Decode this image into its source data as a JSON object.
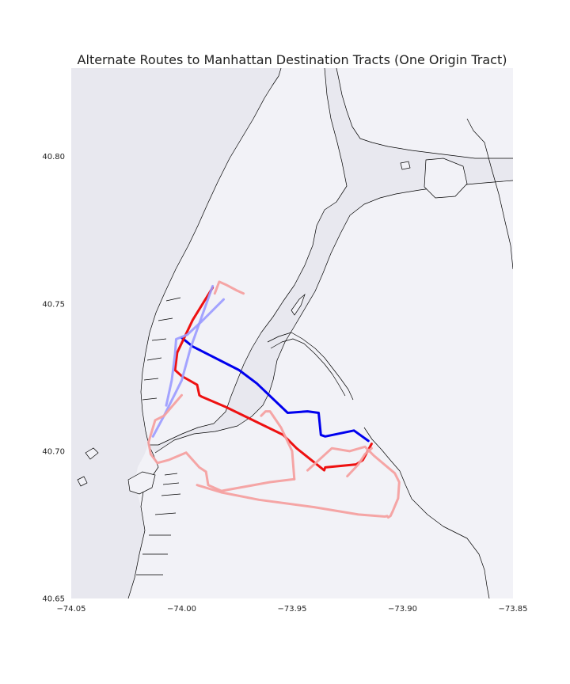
{
  "chart_data": {
    "type": "line",
    "title": "Alternate Routes to Manhattan Destination Tracts (One Origin Tract)",
    "xlim": [
      -74.05,
      -73.85
    ],
    "ylim": [
      40.65,
      40.83
    ],
    "x_ticks": [
      -74.05,
      -74.0,
      -73.95,
      -73.9,
      -73.85
    ],
    "x_tick_labels": [
      "−74.05",
      "−74.00",
      "−73.95",
      "−73.90",
      "−73.85"
    ],
    "y_ticks": [
      40.65,
      40.7,
      40.75,
      40.8
    ],
    "y_tick_labels": [
      "40.65",
      "40.70",
      "40.75",
      "40.80"
    ],
    "grid": false,
    "colors": {
      "land": "#f2f2f7",
      "water": "#e8e8ef",
      "coastline": "#000000",
      "route_primary_blue": "#0000ee",
      "route_primary_red": "#ee1111",
      "route_alt_blue": "#9a9aff",
      "route_alt_red": "#f4a0a0"
    },
    "series": [
      {
        "color": "#0000ee",
        "opacity": 1,
        "width": 3,
        "x": [
          -73.9155,
          -73.922,
          -73.935,
          -73.937,
          -73.938,
          -73.943,
          -73.952,
          -73.966,
          -73.974,
          -73.995,
          -74.0
        ],
        "y": [
          40.7035,
          40.707,
          40.705,
          40.7055,
          40.713,
          40.7135,
          40.713,
          40.723,
          40.7275,
          40.7355,
          40.7385
        ]
      },
      {
        "color": "#ee1111",
        "opacity": 1,
        "width": 3,
        "x": [
          -73.914,
          -73.918,
          -73.921,
          -73.928,
          -73.935,
          -73.9355,
          -73.948,
          -73.954,
          -73.98,
          -73.991,
          -73.992,
          -73.993,
          -74.0,
          -74.003,
          -74.002,
          -73.995,
          -73.986
        ],
        "y": [
          40.7025,
          40.697,
          40.6955,
          40.695,
          40.6945,
          40.6935,
          40.701,
          40.7055,
          40.715,
          40.7185,
          40.719,
          40.7225,
          40.7255,
          40.7275,
          40.7335,
          40.7445,
          40.7555
        ]
      },
      {
        "color": "#9a9aff",
        "opacity": 0.9,
        "width": 3,
        "x": [
          -74.013,
          -74.008,
          -74.0,
          -73.996,
          -73.986
        ],
        "y": [
          40.705,
          40.712,
          40.724,
          40.735,
          40.756
        ]
      },
      {
        "color": "#9a9aff",
        "opacity": 0.9,
        "width": 3,
        "x": [
          -74.007,
          -74.0045,
          -74.003,
          -74.0025,
          -73.9975,
          -73.991,
          -73.981
        ],
        "y": [
          40.7155,
          40.724,
          40.733,
          40.738,
          40.7395,
          40.744,
          40.7515
        ]
      },
      {
        "color": "#f4a0a0",
        "opacity": 0.95,
        "width": 3,
        "x": [
          -74.0,
          -74.004,
          -74.008,
          -74.012,
          -74.015,
          -74.014,
          -74.011,
          -74.006,
          -73.998,
          -73.992,
          -73.989,
          -73.988,
          -73.982,
          -73.96,
          -73.949
        ],
        "y": [
          40.719,
          40.7155,
          40.712,
          40.7105,
          40.703,
          40.699,
          40.696,
          40.697,
          40.6995,
          40.6945,
          40.693,
          40.6885,
          40.6865,
          40.6895,
          40.6905
        ]
      },
      {
        "color": "#f4a0a0",
        "opacity": 0.95,
        "width": 3,
        "x": [
          -73.949,
          -73.95,
          -73.955,
          -73.96,
          -73.962,
          -73.964
        ],
        "y": [
          40.6905,
          40.7,
          40.708,
          40.7135,
          40.7135,
          40.712
        ]
      },
      {
        "color": "#f4a0a0",
        "opacity": 0.95,
        "width": 3,
        "x": [
          -73.943,
          -73.932,
          -73.924,
          -73.917,
          -73.913,
          -73.9035,
          -73.9015,
          -73.902,
          -73.9045,
          -73.9055,
          -73.9065,
          -73.907,
          -73.908,
          -73.92,
          -73.94,
          -73.965,
          -73.982,
          -73.993
        ],
        "y": [
          40.6935,
          40.701,
          40.7,
          40.7015,
          40.6985,
          40.6925,
          40.6895,
          40.684,
          40.6795,
          40.678,
          40.6775,
          40.678,
          40.6778,
          40.6785,
          40.681,
          40.6835,
          40.686,
          40.6885
        ]
      },
      {
        "color": "#f4a0a0",
        "opacity": 0.95,
        "width": 3,
        "x": [
          -73.925,
          -73.92,
          -73.917,
          -73.914
        ],
        "y": [
          40.6915,
          40.6955,
          40.699,
          40.701
        ]
      },
      {
        "color": "#f4a0a0",
        "opacity": 0.95,
        "width": 3,
        "x": [
          -73.972,
          -73.975,
          -73.98,
          -73.983,
          -73.985
        ],
        "y": [
          40.7535,
          40.7545,
          40.7565,
          40.7575,
          40.7535
        ]
      }
    ]
  }
}
